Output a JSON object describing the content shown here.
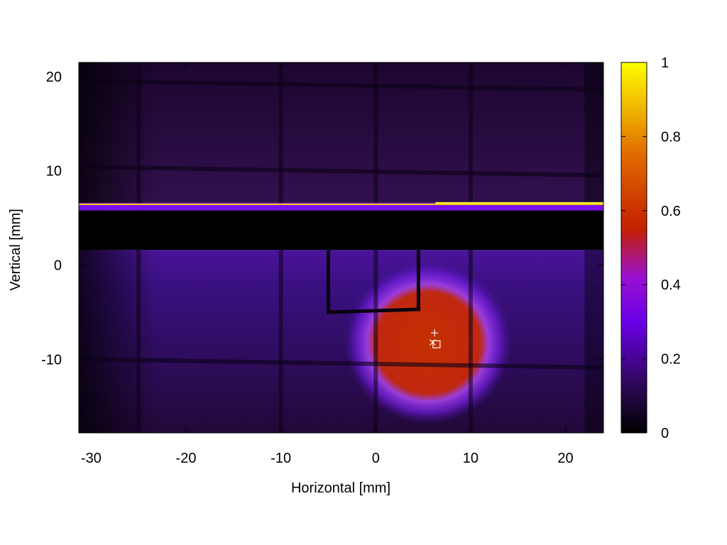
{
  "chart_data": {
    "type": "heatmap",
    "title": "",
    "xlabel": "Horizontal [mm]",
    "ylabel": "Vertical [mm]",
    "xlim": [
      -31.3,
      24.0
    ],
    "ylim": [
      -17.8,
      21.5
    ],
    "x_ticks": [
      -30,
      -20,
      -10,
      0,
      10,
      20
    ],
    "y_ticks": [
      -10,
      0,
      10,
      20
    ],
    "colorbar": {
      "range": [
        0,
        1
      ],
      "ticks": [
        0,
        0.2,
        0.4,
        0.6,
        0.8,
        1
      ],
      "colormap": [
        "#000000",
        "#3a0a78",
        "#8a00ff",
        "#c42000",
        "#e07000",
        "#ffff00"
      ]
    },
    "grid": false,
    "features": {
      "saturated_band_y": [
        5.8,
        6.6
      ],
      "dark_band_y": [
        1.6,
        5.8
      ],
      "vertical_dark_lines_x": [
        -25,
        -10,
        0,
        10
      ],
      "horizontal_dark_lines_y": [
        19.3,
        10.2,
        -10.2
      ],
      "hot_region": {
        "x": [
          0,
          11
        ],
        "y": [
          -13.5,
          -3.0
        ],
        "level": 0.5
      },
      "blade_edge": {
        "x": [
          -5,
          4.5
        ],
        "y": -5.0
      }
    },
    "markers": [
      {
        "symbol": "+",
        "x": 6.2,
        "y": -7.2
      },
      {
        "symbol": "x",
        "x": 6.0,
        "y": -8.2
      },
      {
        "symbol": "square",
        "x": 6.4,
        "y": -8.4
      }
    ]
  }
}
